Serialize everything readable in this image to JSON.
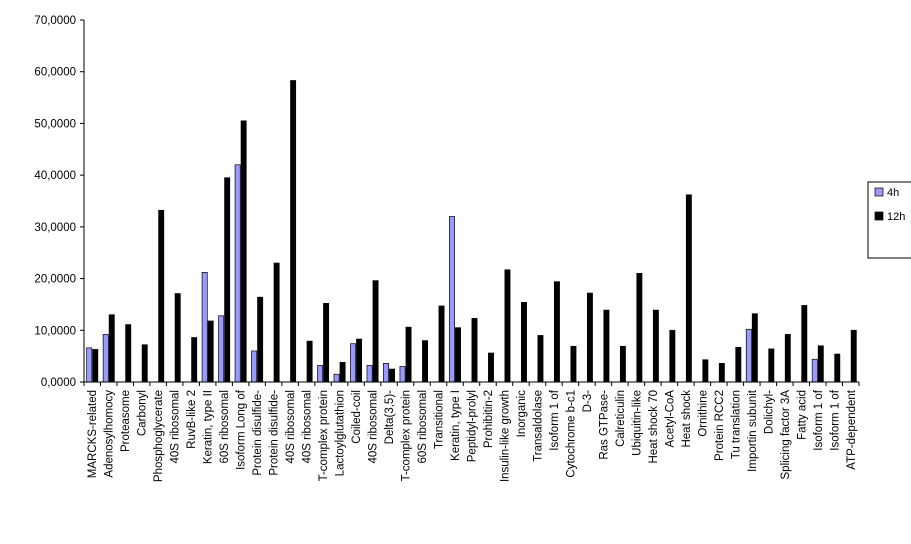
{
  "chart_data": {
    "type": "bar",
    "title": "",
    "xlabel": "",
    "ylabel": "",
    "ylim": [
      0,
      70
    ],
    "y_ticks": [
      "0,0000",
      "10,0000",
      "20,0000",
      "30,0000",
      "40,0000",
      "50,0000",
      "60,0000",
      "70,0000"
    ],
    "grid": false,
    "legend_position": "right",
    "categories": [
      "MARCKS-related",
      "Adenosylhomocy",
      "Proteasome",
      "Carbonyl",
      "Phosphoglycerate",
      "40S ribosomal",
      "RuvB-like 2",
      "Keratin, type II",
      "60S ribosomal",
      "Isoform Long of",
      "Protein disulfide-",
      "Protein disulfide-",
      "40S ribosomal",
      "40S ribosomal",
      "T-complex protein",
      "Lactoylglutathion",
      "Coiled-coil",
      "40S ribosomal",
      "Delta(3,5)-",
      "T-complex protein",
      "60S ribosomal",
      "Transitional",
      "Keratin, type I",
      "Peptidyl-prolyl",
      "Prohibitin-2",
      "Insulin-like growth",
      "Inorganic",
      "Transaldolase",
      "Isoform 1 of",
      "Cytochrome b-c1",
      "D-3-",
      "Ras GTPase-",
      "Calreticulin",
      "Ubiquitin-like",
      "Heat shock 70",
      "Acetyl-CoA",
      "Heat shock",
      "Ornithine",
      "Protein RCC2",
      "Tu translation",
      "Importin subunit",
      "Dolichyl-",
      "Splicing factor 3A",
      "Fatty acid",
      "Isoform 1 of",
      "Isoform 1 of",
      "ATP-dependent"
    ],
    "series": [
      {
        "name": "4h",
        "color": "#9999ff",
        "values": [
          6.6,
          9.2,
          0,
          0,
          0,
          0,
          0,
          21.2,
          12.8,
          42.0,
          6.0,
          0,
          0,
          0,
          3.2,
          1.5,
          7.4,
          3.2,
          3.6,
          3.0,
          0,
          0,
          32.0,
          0,
          0,
          0,
          0,
          0,
          0,
          0,
          0,
          0,
          0,
          0,
          0,
          0,
          0,
          0,
          0,
          0,
          10.2,
          0,
          0,
          0,
          4.4,
          0,
          0
        ]
      },
      {
        "name": "12h",
        "color": "#000000",
        "values": [
          6.3,
          13.0,
          11.1,
          7.2,
          33.2,
          17.1,
          8.6,
          11.8,
          39.5,
          50.5,
          16.4,
          23.0,
          58.3,
          7.9,
          15.2,
          3.8,
          8.3,
          19.6,
          2.5,
          10.6,
          8.0,
          14.7,
          10.5,
          12.3,
          5.6,
          21.7,
          15.4,
          9.0,
          19.4,
          6.9,
          17.2,
          13.9,
          6.9,
          21.0,
          13.9,
          10.0,
          36.2,
          4.3,
          3.6,
          6.7,
          13.2,
          6.4,
          9.2,
          14.8,
          7.0,
          5.4,
          10.0
        ]
      }
    ]
  }
}
